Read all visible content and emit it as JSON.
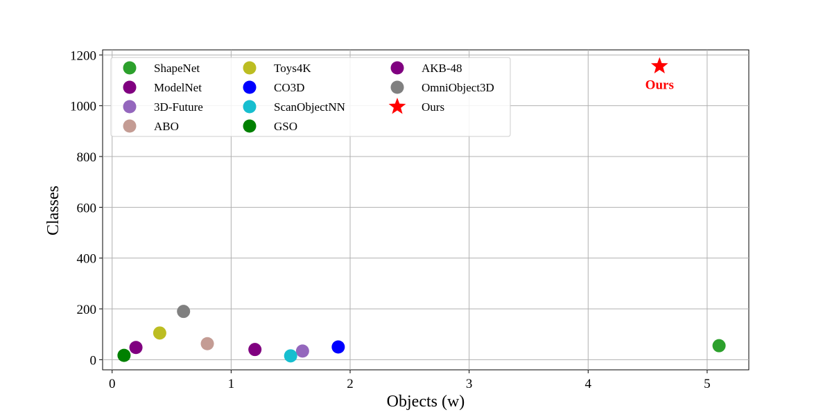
{
  "chart_data": {
    "type": "scatter",
    "title": "",
    "xlabel": "Objects (w)",
    "ylabel": "Classes",
    "xlim": [
      -0.08,
      5.35
    ],
    "ylim": [
      -40,
      1220
    ],
    "xticks": [
      0,
      1,
      2,
      3,
      4,
      5
    ],
    "yticks": [
      0,
      200,
      400,
      600,
      800,
      1000,
      1200
    ],
    "grid": true,
    "legend_position": "top-left",
    "legend_columns": 3,
    "series": [
      {
        "name": "ShapeNet",
        "x": [
          5.1
        ],
        "y": [
          55
        ],
        "color": "#2ca02c",
        "marker": "circle"
      },
      {
        "name": "ModelNet",
        "x": [
          0.2
        ],
        "y": [
          48
        ],
        "color": "#800080",
        "marker": "circle"
      },
      {
        "name": "3D-Future",
        "x": [
          1.6
        ],
        "y": [
          34
        ],
        "color": "#9467bd",
        "marker": "circle"
      },
      {
        "name": "ABO",
        "x": [
          0.8
        ],
        "y": [
          63
        ],
        "color": "#c49c94",
        "marker": "circle"
      },
      {
        "name": "Toys4K",
        "x": [
          0.4
        ],
        "y": [
          105
        ],
        "color": "#bcbd22",
        "marker": "circle"
      },
      {
        "name": "CO3D",
        "x": [
          1.9
        ],
        "y": [
          50
        ],
        "color": "#0000ff",
        "marker": "circle"
      },
      {
        "name": "ScanObjectNN",
        "x": [
          1.5
        ],
        "y": [
          15
        ],
        "color": "#17becf",
        "marker": "circle"
      },
      {
        "name": "GSO",
        "x": [
          0.1
        ],
        "y": [
          17
        ],
        "color": "#008000",
        "marker": "circle"
      },
      {
        "name": "AKB-48",
        "x": [
          1.2
        ],
        "y": [
          40
        ],
        "color": "#800080",
        "marker": "circle"
      },
      {
        "name": "OmniObject3D",
        "x": [
          0.6
        ],
        "y": [
          190
        ],
        "color": "#808080",
        "marker": "circle"
      },
      {
        "name": "Ours",
        "x": [
          4.6
        ],
        "y": [
          1156
        ],
        "color": "#ff0000",
        "marker": "star"
      }
    ],
    "annotations": [
      {
        "text": "Ours",
        "x": 4.6,
        "y": 1156,
        "color": "#ff0000",
        "bold": true
      }
    ]
  }
}
